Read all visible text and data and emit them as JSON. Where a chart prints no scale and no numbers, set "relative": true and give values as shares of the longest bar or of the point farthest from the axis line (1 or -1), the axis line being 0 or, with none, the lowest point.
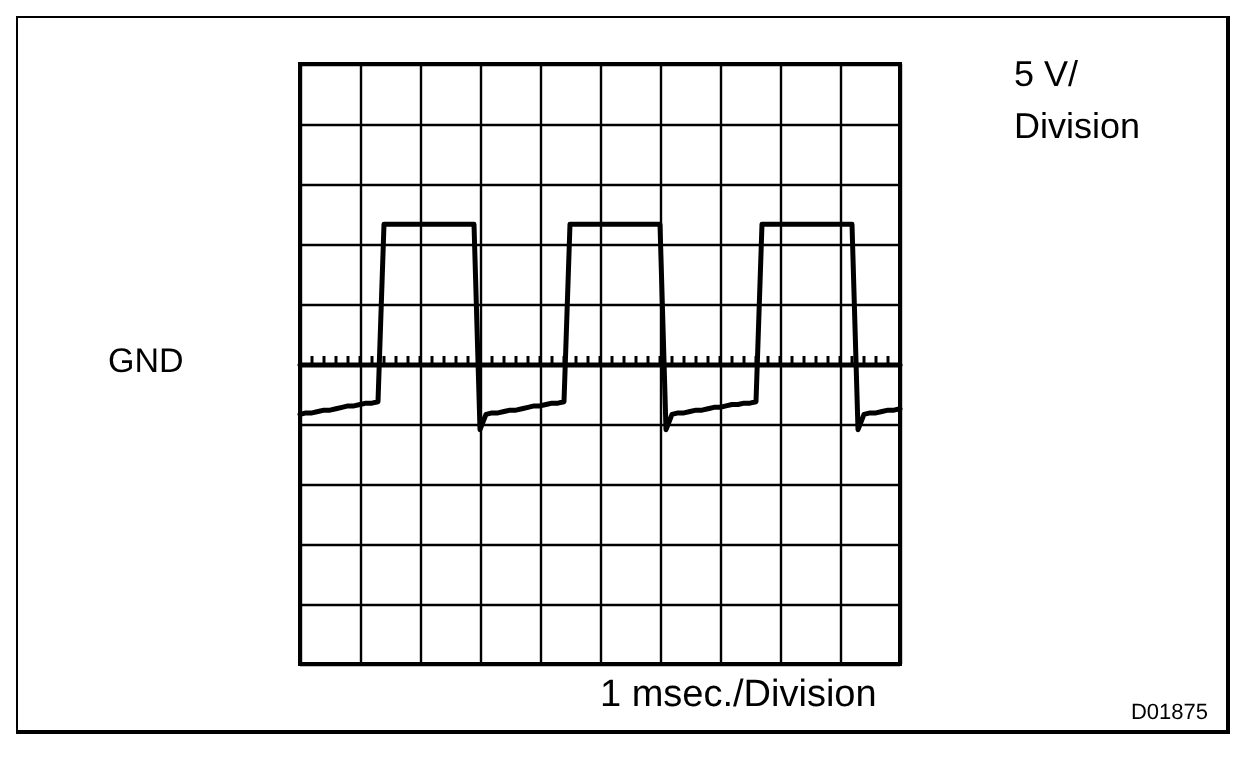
{
  "chart_data": {
    "type": "line",
    "relative": true,
    "categories": [
      null,
      null,
      null,
      null,
      null,
      null,
      null,
      null,
      null,
      null,
      null,
      null,
      null,
      null,
      null,
      null,
      null,
      null,
      null,
      null,
      null,
      null,
      null,
      null,
      null,
      null,
      null,
      null,
      null,
      null,
      null,
      null,
      null,
      null,
      null,
      null,
      null,
      null,
      null,
      null,
      null,
      null,
      null,
      null,
      null,
      null,
      null,
      null,
      null,
      null,
      null,
      null,
      null,
      null,
      null,
      null,
      null,
      null,
      null,
      null,
      null,
      null,
      null,
      null,
      null,
      null,
      null,
      null,
      null,
      null,
      null,
      null,
      null,
      null,
      null,
      null,
      null,
      null,
      null,
      null,
      null,
      null,
      null,
      null,
      null,
      null,
      null,
      null,
      null,
      null,
      null,
      null,
      null,
      null,
      null,
      null,
      null,
      null,
      null,
      null,
      null
    ],
    "series": [
      {
        "color": "#000000",
        "values": [
          -0.36,
          -0.35,
          -0.35,
          -0.34,
          -0.33,
          -0.33,
          -0.32,
          -0.31,
          -0.3,
          -0.3,
          -0.29,
          -0.28,
          -0.28,
          -0.27,
          1,
          1,
          1,
          1,
          1,
          1,
          1,
          1,
          1,
          1,
          1,
          1,
          1,
          1,
          1,
          1,
          -0.47,
          -0.36,
          -0.35,
          -0.35,
          -0.34,
          -0.33,
          -0.33,
          -0.32,
          -0.31,
          -0.3,
          -0.3,
          -0.29,
          -0.28,
          -0.28,
          -0.27,
          1,
          1,
          1,
          1,
          1,
          1,
          1,
          1,
          1,
          1,
          1,
          1,
          1,
          1,
          1,
          1,
          -0.47,
          -0.36,
          -0.35,
          -0.35,
          -0.34,
          -0.33,
          -0.33,
          -0.32,
          -0.31,
          -0.31,
          -0.3,
          -0.29,
          -0.29,
          -0.28,
          -0.28,
          -0.27,
          1,
          1,
          1,
          1,
          1,
          1,
          1,
          1,
          1,
          1,
          1,
          1,
          1,
          1,
          1,
          1,
          -0.47,
          -0.36,
          -0.35,
          -0.35,
          -0.34,
          -0.33,
          -0.33,
          -0.32
        ]
      }
    ],
    "annotations": [
      "GND",
      "5 V/\nDivision",
      "D01875",
      "1 msec./Division"
    ],
    "grid": true,
    "marker": "none",
    "line_style": "solid"
  }
}
